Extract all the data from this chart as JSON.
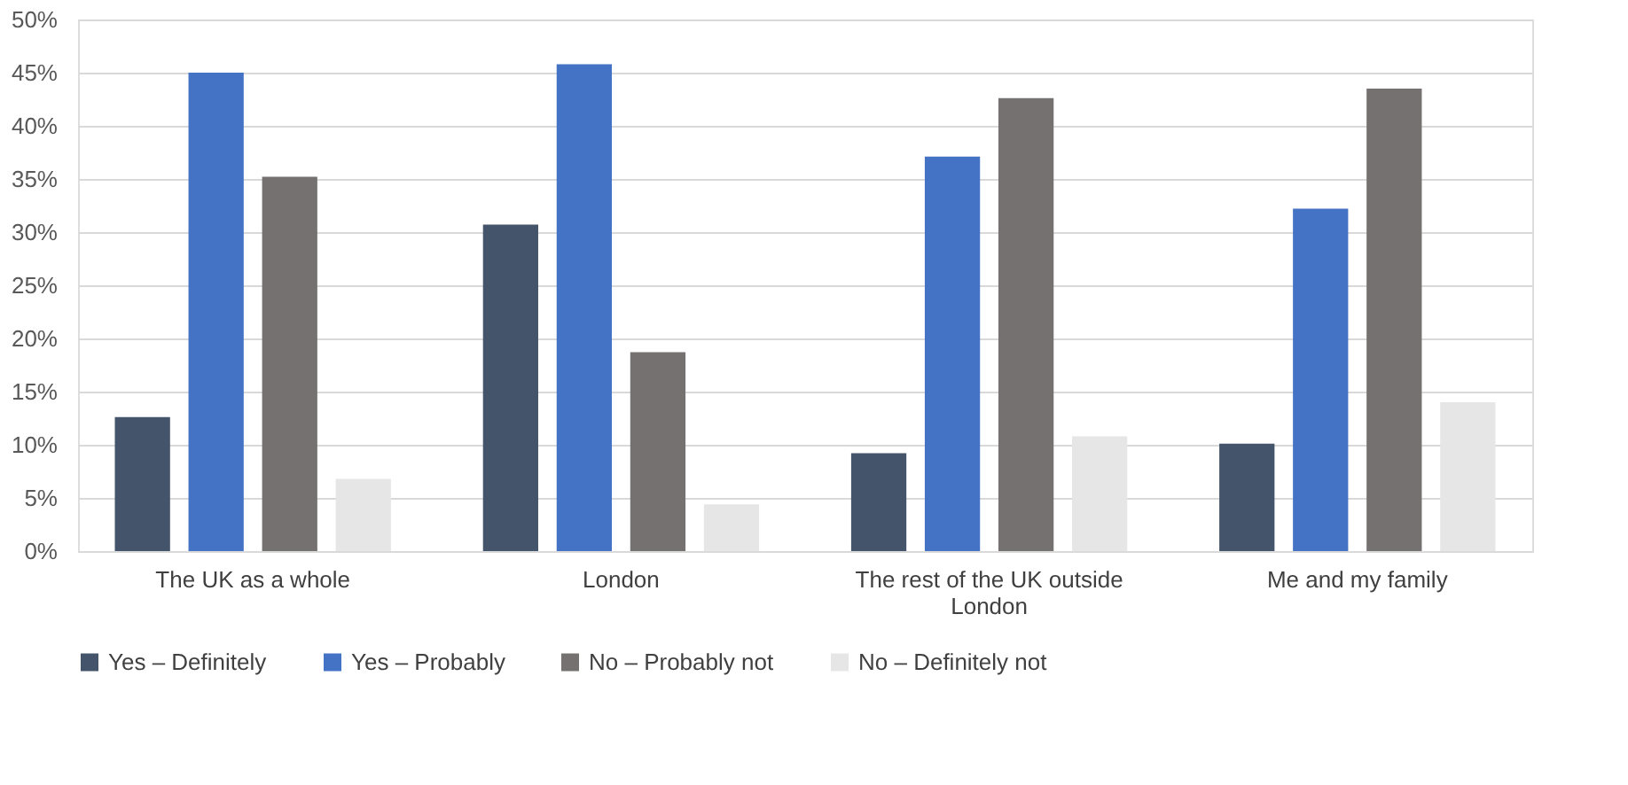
{
  "chart_data": {
    "type": "bar",
    "categories": [
      "The UK as a whole",
      "London",
      "The rest of the UK outside London",
      "Me and my family"
    ],
    "series": [
      {
        "name": "Yes – Definitely",
        "color": "#44546a",
        "values": [
          12.6,
          30.7,
          9.2,
          10.1
        ]
      },
      {
        "name": "Yes – Probably",
        "color": "#4472c4",
        "values": [
          45.0,
          45.8,
          37.1,
          32.2
        ]
      },
      {
        "name": "No – Probably not",
        "color": "#767171",
        "values": [
          35.2,
          18.7,
          42.6,
          43.5
        ]
      },
      {
        "name": "No – Definitely not",
        "color": "#e7e6e6",
        "values": [
          6.8,
          4.4,
          10.8,
          14.0
        ]
      }
    ],
    "ylim": [
      0,
      50
    ],
    "yticks": [
      {
        "value": 0,
        "label": "0%"
      },
      {
        "value": 5,
        "label": "5%"
      },
      {
        "value": 10,
        "label": "10%"
      },
      {
        "value": 15,
        "label": "15%"
      },
      {
        "value": 20,
        "label": "20%"
      },
      {
        "value": 25,
        "label": "25%"
      },
      {
        "value": 30,
        "label": "30%"
      },
      {
        "value": 35,
        "label": "35%"
      },
      {
        "value": 40,
        "label": "40%"
      },
      {
        "value": 45,
        "label": "45%"
      },
      {
        "value": 50,
        "label": "50%"
      }
    ],
    "grid": "y",
    "legend": "bottom"
  }
}
